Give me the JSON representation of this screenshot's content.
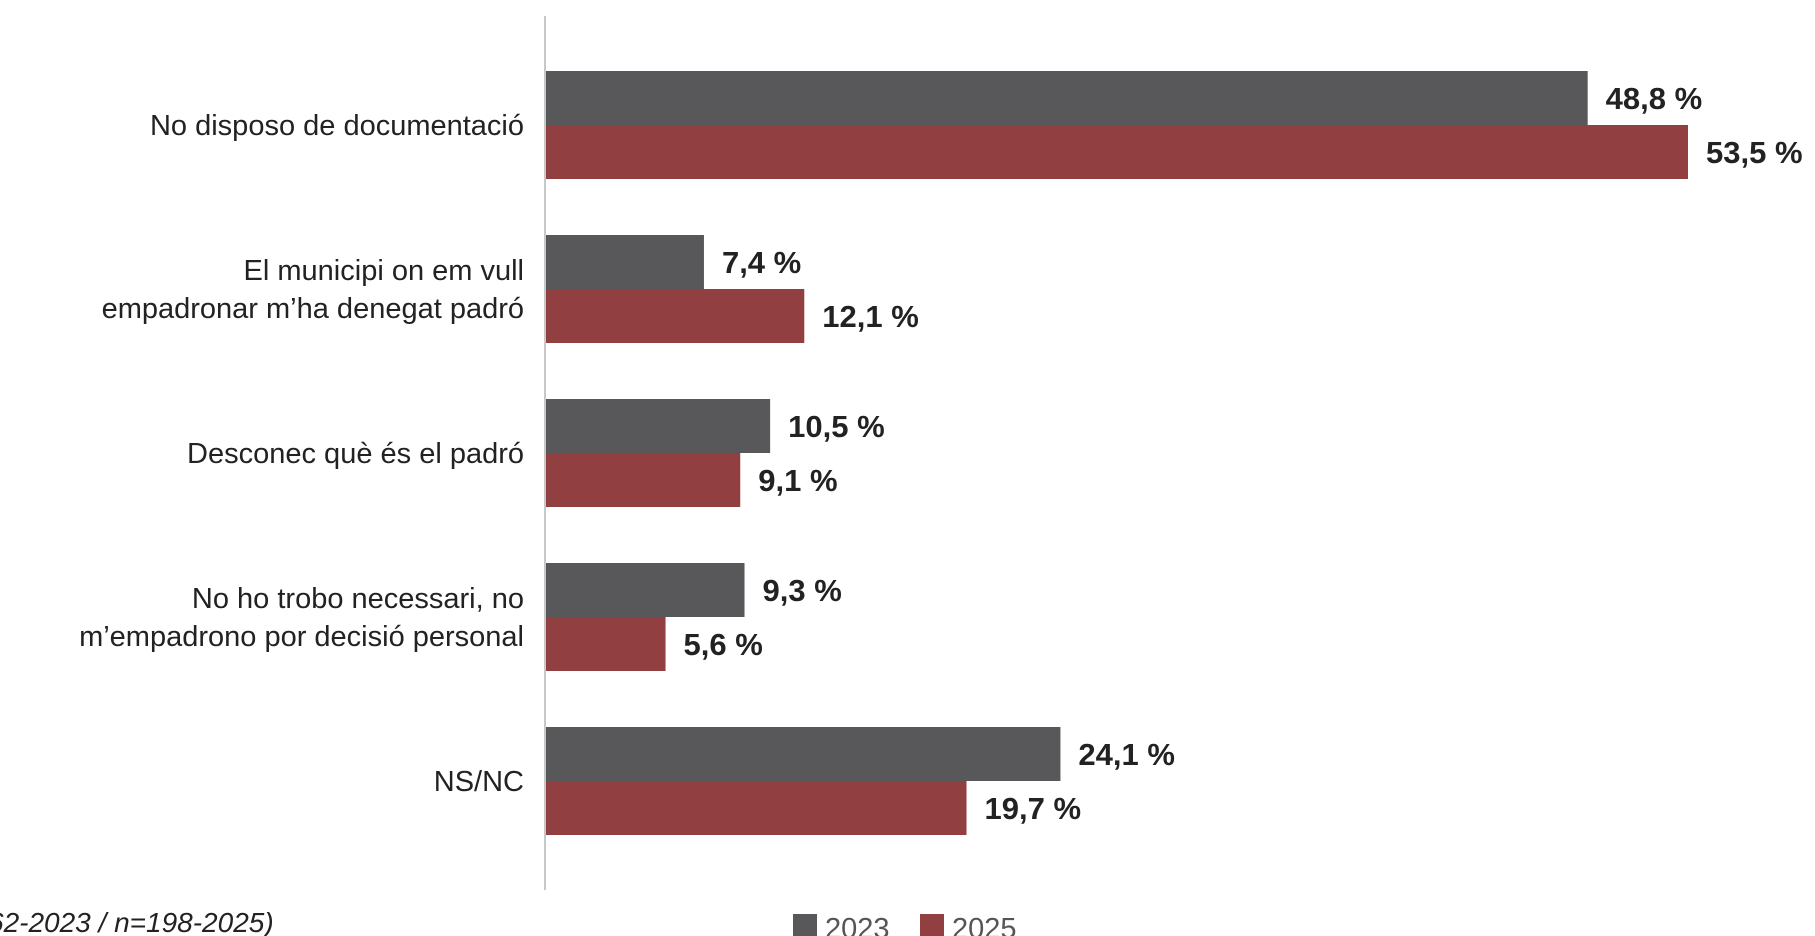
{
  "chart_data": {
    "type": "bar",
    "orientation": "horizontal",
    "categories": [
      [
        "No disposo de documentació"
      ],
      [
        "El municipi on em vull",
        "empadronar m’ha denegat padró"
      ],
      [
        "Desconec què és el padró"
      ],
      [
        "No ho trobo necessari, no",
        "m’empadrono por decisió personal"
      ],
      [
        "NS/NC"
      ]
    ],
    "series": [
      {
        "name": "2023",
        "color": "#58585a",
        "values": [
          48.8,
          7.4,
          10.5,
          9.3,
          24.1
        ],
        "labels": [
          "48,8 %",
          "7,4 %",
          "10,5 %",
          "9,3 %",
          "24,1 %"
        ]
      },
      {
        "name": "2025",
        "color": "#923f42",
        "values": [
          53.5,
          12.1,
          9.1,
          5.6,
          19.7
        ],
        "labels": [
          "53,5 %",
          "12,1 %",
          "9,1 %",
          "5,6 %",
          "19,7 %"
        ]
      }
    ],
    "xlim": [
      0,
      53.5
    ],
    "grid": false,
    "legend": "bottom-center",
    "note": "62-2023 / n=198-2025)"
  }
}
